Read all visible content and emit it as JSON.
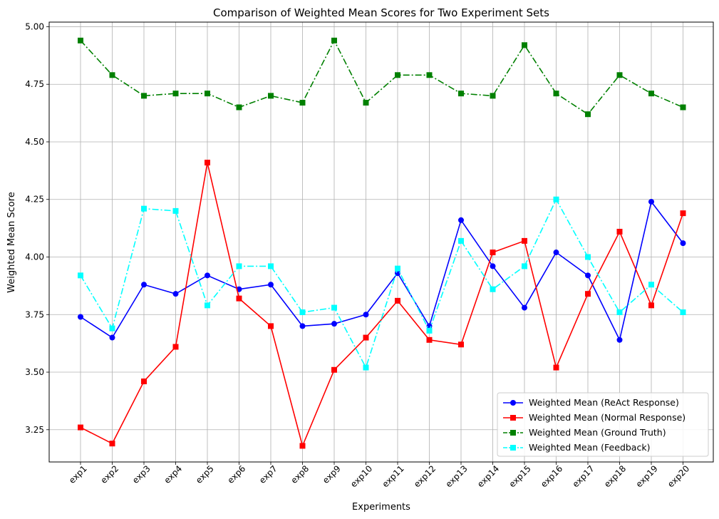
{
  "chart_data": {
    "type": "line",
    "title": "Comparison of Weighted Mean Scores for Two Experiment Sets",
    "xlabel": "Experiments",
    "ylabel": "Weighted Mean Score",
    "categories": [
      "exp1",
      "exp2",
      "exp3",
      "exp4",
      "exp5",
      "exp6",
      "exp7",
      "exp8",
      "exp9",
      "exp10",
      "exp11",
      "exp12",
      "exp13",
      "exp14",
      "exp15",
      "exp16",
      "exp17",
      "exp18",
      "exp19",
      "exp20"
    ],
    "ylim": [
      3.11,
      5.02
    ],
    "yticks": [
      3.25,
      3.5,
      3.75,
      4.0,
      4.25,
      4.5,
      4.75,
      5.0
    ],
    "yticklabels": [
      "3.25",
      "3.50",
      "3.75",
      "4.00",
      "4.25",
      "4.50",
      "4.75",
      "5.00"
    ],
    "grid": true,
    "legend_position": "lower-right",
    "series": [
      {
        "name": "Weighted Mean (ReAct Response)",
        "color": "#0000ff",
        "marker": "circle",
        "line_style": "solid",
        "values": [
          3.74,
          3.65,
          3.88,
          3.84,
          3.92,
          3.86,
          3.88,
          3.7,
          3.71,
          3.75,
          3.93,
          3.7,
          4.16,
          3.96,
          3.78,
          4.02,
          3.92,
          3.64,
          4.24,
          4.06
        ]
      },
      {
        "name": "Weighted Mean (Normal Response)",
        "color": "#ff0000",
        "marker": "square",
        "line_style": "solid",
        "values": [
          3.26,
          3.19,
          3.46,
          3.61,
          4.41,
          3.82,
          3.7,
          3.18,
          3.51,
          3.65,
          3.81,
          3.64,
          3.62,
          4.02,
          4.07,
          3.52,
          3.84,
          4.11,
          3.79,
          4.19
        ]
      },
      {
        "name": "Weighted Mean (Ground Truth)",
        "color": "#008000",
        "marker": "square",
        "line_style": "dashdot",
        "values": [
          4.94,
          4.79,
          4.7,
          4.71,
          4.71,
          4.65,
          4.7,
          4.67,
          4.94,
          4.67,
          4.79,
          4.79,
          4.71,
          4.7,
          4.92,
          4.71,
          4.62,
          4.79,
          4.71,
          4.65
        ]
      },
      {
        "name": "Weighted Mean (Feedback)",
        "color": "#00ffff",
        "marker": "square",
        "line_style": "dashdot",
        "values": [
          3.92,
          3.69,
          4.21,
          4.2,
          3.79,
          3.96,
          3.96,
          3.76,
          3.78,
          3.52,
          3.95,
          3.68,
          4.07,
          3.86,
          3.96,
          4.25,
          4.0,
          3.76,
          3.88,
          3.76
        ]
      }
    ]
  }
}
